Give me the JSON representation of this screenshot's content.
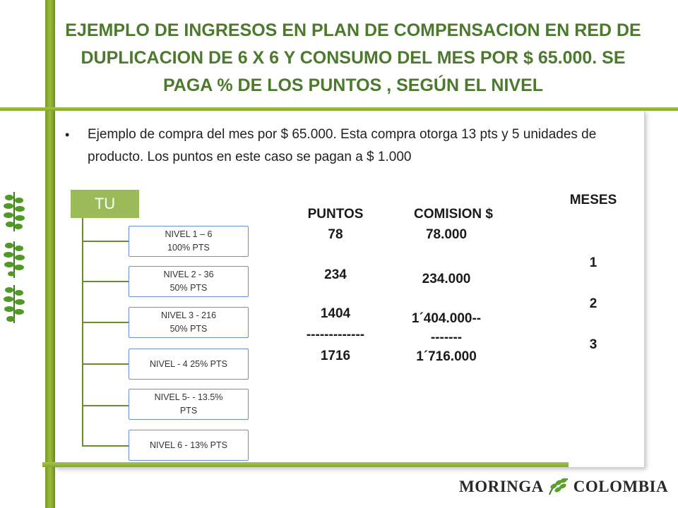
{
  "title": "EJEMPLO DE  INGRESOS EN PLAN DE COMPENSACION EN RED DE DUPLICACION DE  6 X 6  Y  CONSUMO DEL MES  POR  $ 65.000. SE PAGA  % DE LOS PUNTOS , SEGÚN EL NIVEL",
  "bullet": "Ejemplo de compra del mes por  $ 65.000. Esta compra otorga 13 pts y 5 unidades de producto.   Los puntos en este caso se pagan a $  1.000",
  "tree": {
    "root": "TU",
    "levels": [
      {
        "line1": "NIVEL 1 – 6",
        "line2": "100%  PTS"
      },
      {
        "line1": "NIVEL 2   - 36",
        "line2": "50%   PTS"
      },
      {
        "line1": "NIVEL  3  - 216",
        "line2": "50% PTS"
      },
      {
        "line1": "NIVEL - 4  25% PTS",
        "line2": ""
      },
      {
        "line1": "NIVEL  5- - 13.5%",
        "line2": "PTS"
      },
      {
        "line1": "NIVEL  6 - 13% PTS",
        "line2": ""
      }
    ]
  },
  "puntos": {
    "header": "PUNTOS",
    "values": [
      "78",
      "234",
      "1404",
      "-------------",
      "1716"
    ]
  },
  "comision": {
    "header": "COMISION $",
    "values": [
      "78.000",
      "234.000",
      "1´404.000--",
      "-------",
      "1´716.000"
    ]
  },
  "meses": {
    "header": "MESES",
    "values": [
      "1",
      "2",
      "3"
    ]
  },
  "logo": {
    "left": "MORINGA",
    "right": "COLOMBIA"
  },
  "colors": {
    "title": "#4b7a2d",
    "accent_green": "#9bbb59",
    "level_border": "#6a8fd0"
  }
}
